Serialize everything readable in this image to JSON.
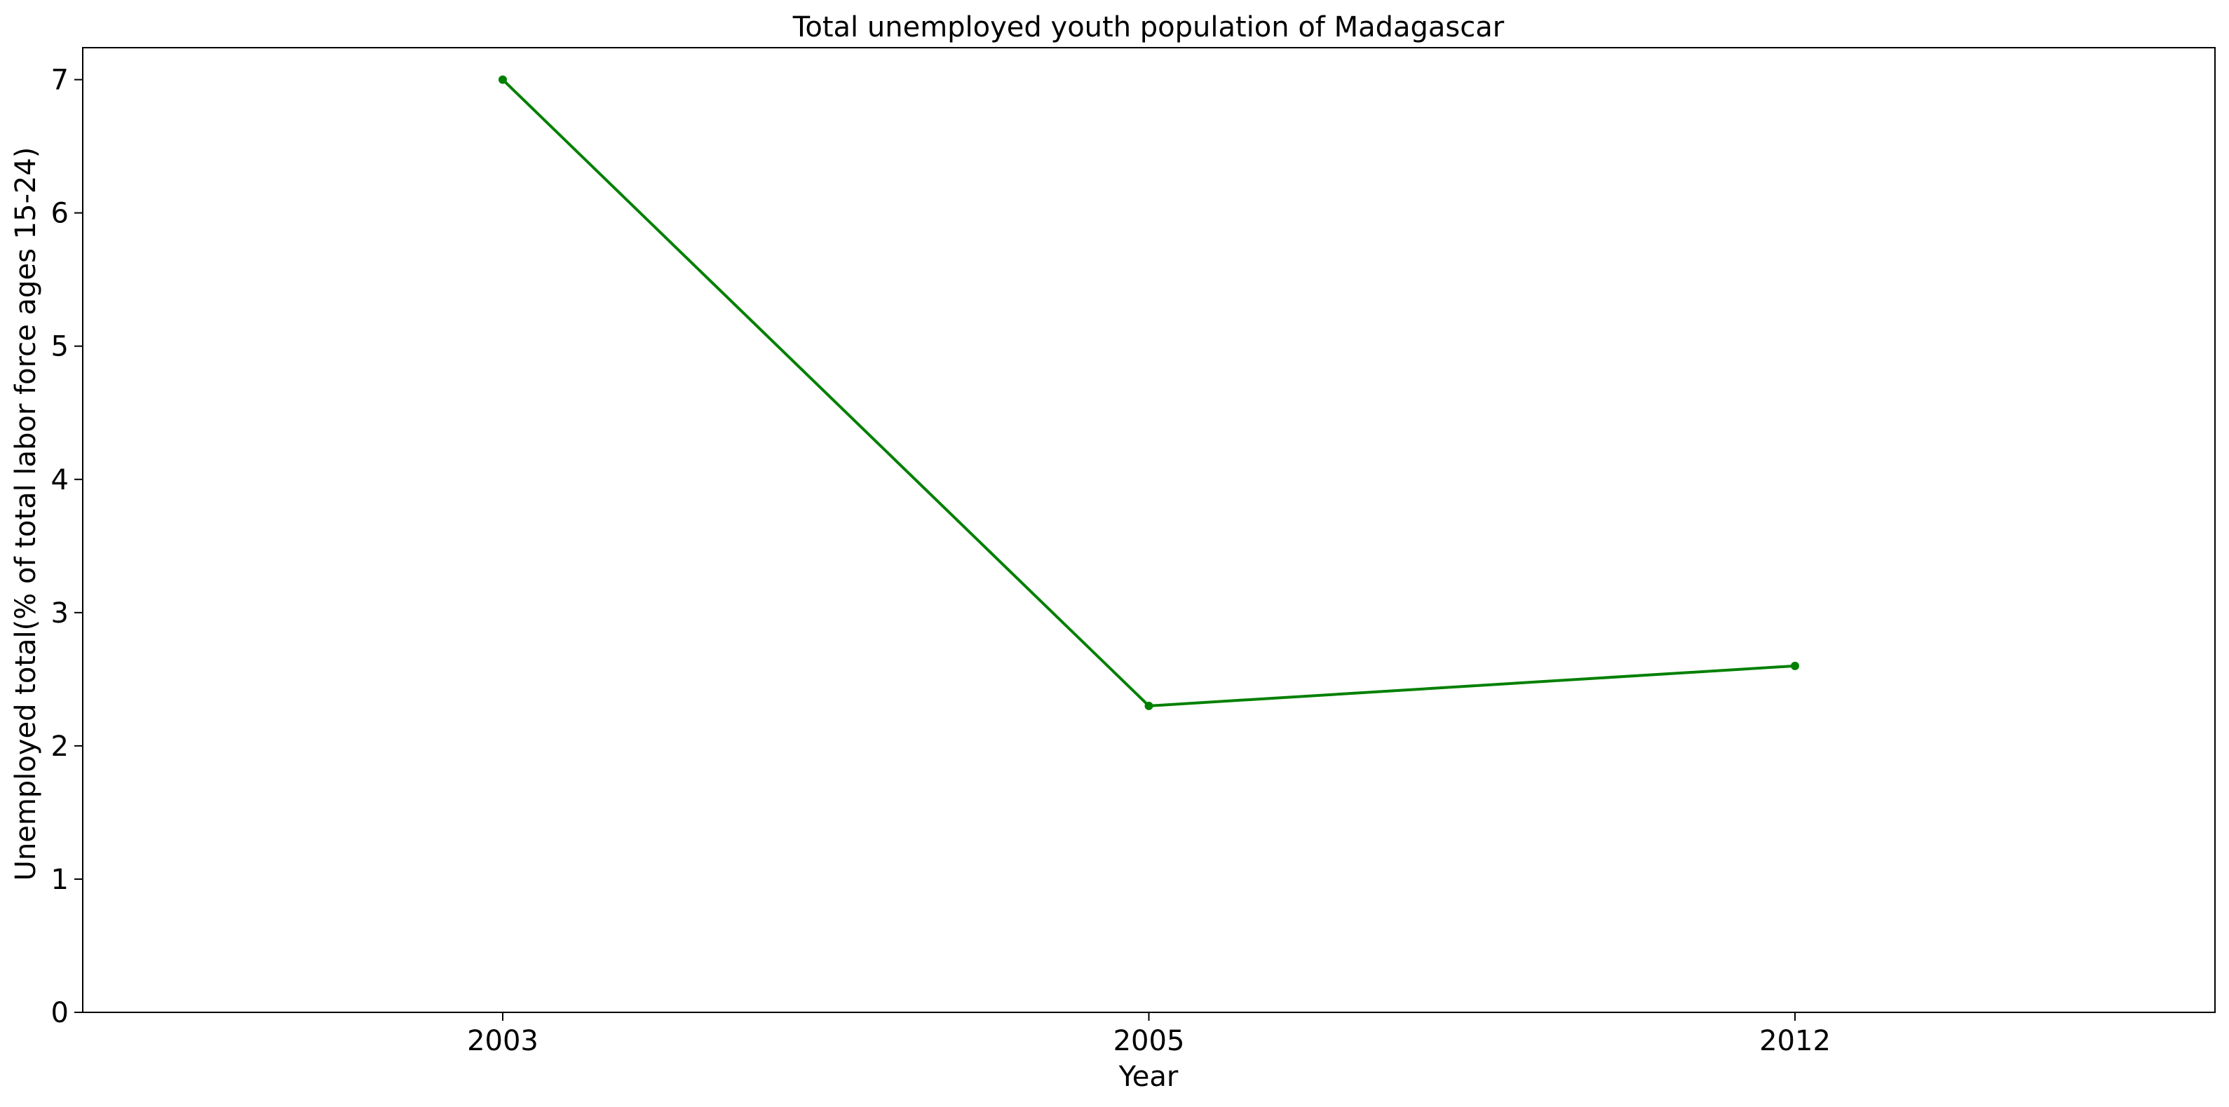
{
  "chart_data": {
    "type": "line",
    "title": "Total unemployed youth population of Madagascar",
    "xlabel": "Year",
    "ylabel": "Unemployed total(% of total labor force ages 15-24)",
    "categories": [
      "2003",
      "2005",
      "2012"
    ],
    "series": [
      {
        "values": [
          7.0,
          2.3,
          2.6
        ],
        "color": "#008000"
      }
    ],
    "yticks": [
      "0",
      "1",
      "2",
      "3",
      "4",
      "5",
      "6",
      "7"
    ],
    "ylim": [
      0,
      7.24
    ],
    "grid": false,
    "legend": "none"
  }
}
